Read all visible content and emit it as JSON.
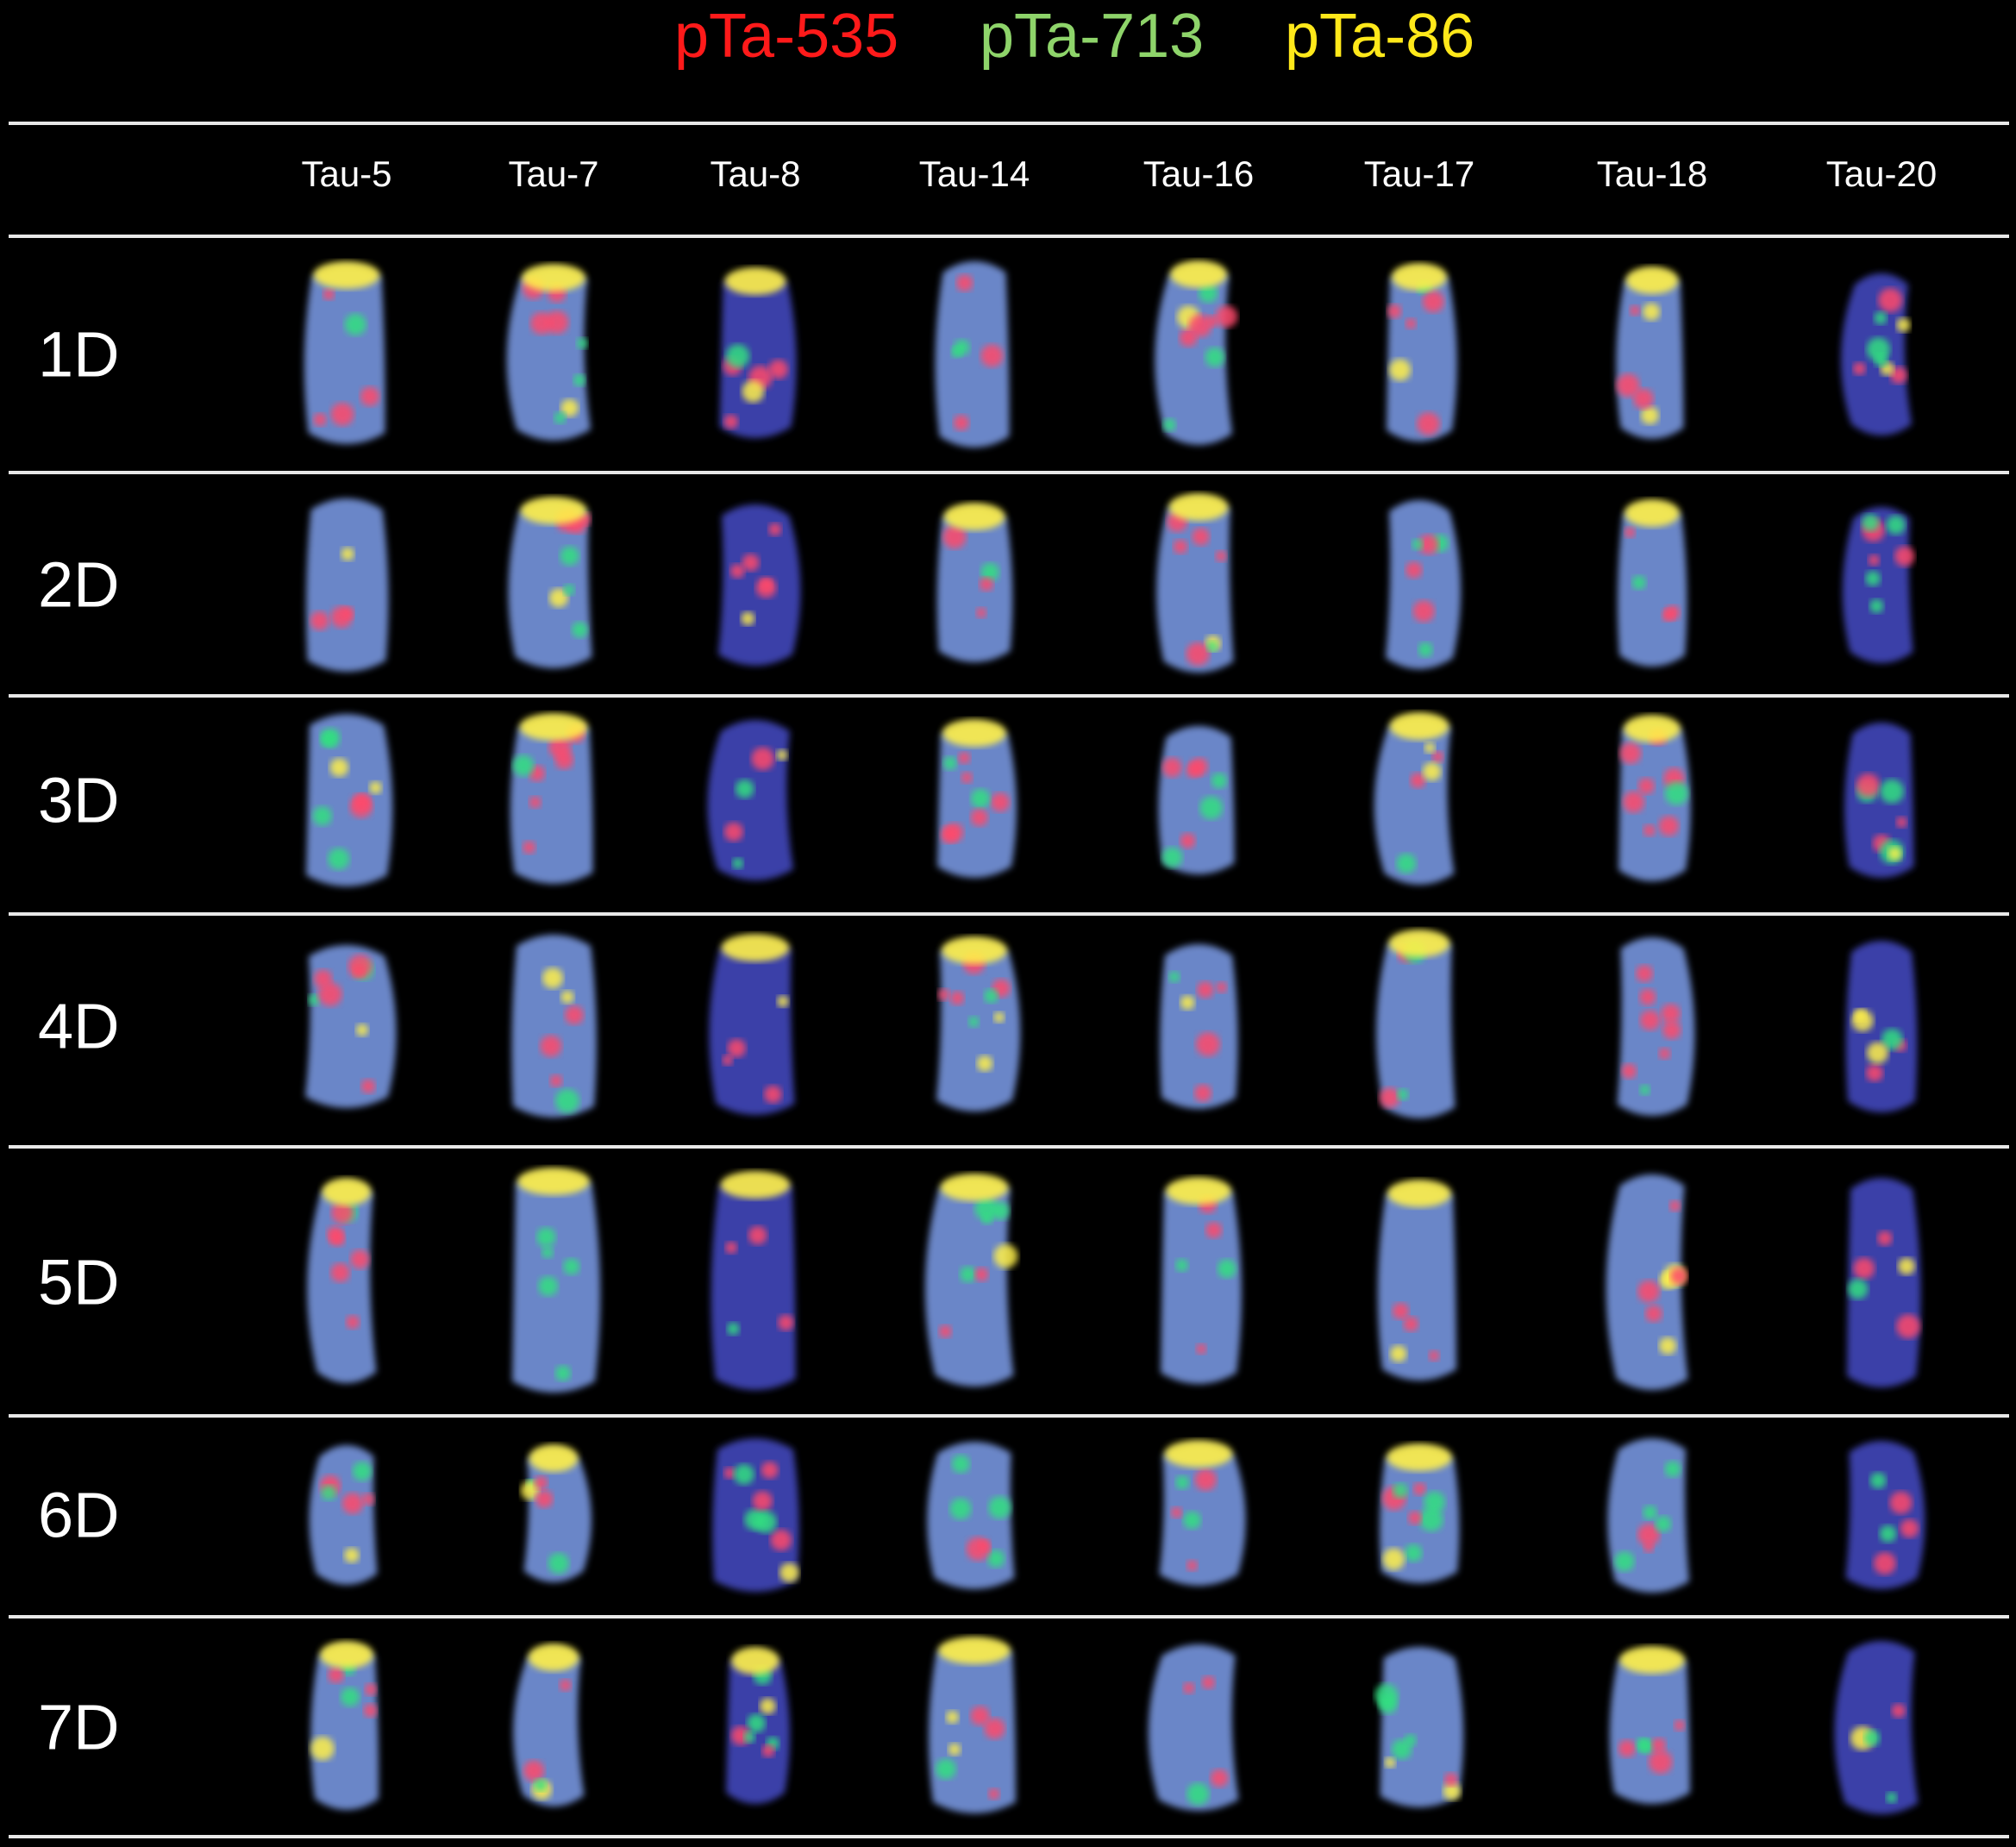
{
  "probes": [
    {
      "label": "pTa-535",
      "color": "#ff1a1a"
    },
    {
      "label": "pTa-713",
      "color": "#8ed46a"
    },
    {
      "label": "pTa-86",
      "color": "#ffe81a"
    }
  ],
  "columns": [
    "Tau-5",
    "Tau-7",
    "Tau-8",
    "Tau-14",
    "Tau-16",
    "Tau-17",
    "Tau-18",
    "Tau-20"
  ],
  "rows": [
    "1D",
    "2D",
    "3D",
    "4D",
    "5D",
    "6D",
    "7D"
  ],
  "colors": {
    "background": "#000000",
    "divider": "#e8e8e8",
    "chromosome_body": "#6a86c8",
    "chromosome_dark": "#3a3fa8",
    "signal_red": "#ff4a6a",
    "signal_green": "#30e080",
    "signal_yellow": "#fff04a"
  }
}
